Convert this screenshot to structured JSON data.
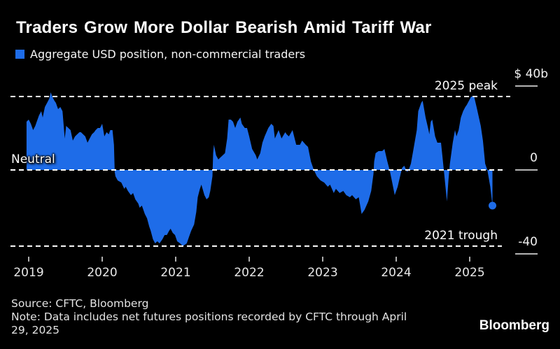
{
  "colors": {
    "background": "#000000",
    "accent_blue": "#1e6ce8",
    "dashed_line": "#ffffff",
    "axis_tick": "#d9d9d9",
    "text_primary": "#ffffff",
    "text_secondary": "#e3e3e3"
  },
  "chart_data": {
    "type": "area",
    "title": "Traders Grow More Dollar Bearish Amid Tariff War",
    "legend_position": "top-left",
    "grid": "off",
    "baseline": 0,
    "x_range": [
      2018.97,
      2025.37
    ],
    "ylim": [
      -45,
      48
    ],
    "x_ticks": [
      "2019",
      "2020",
      "2021",
      "2022",
      "2023",
      "2024",
      "2025"
    ],
    "y_ticks": [
      {
        "label": "$ 40b",
        "value": 40
      },
      {
        "label": "0",
        "value": 0
      },
      {
        "label": "-40",
        "value": -40
      }
    ],
    "annotations": [
      {
        "label": "2025 peak",
        "value": 35,
        "side": "right",
        "style": "dashed"
      },
      {
        "label": "Neutral",
        "value": 0,
        "side": "left",
        "style": "dashed"
      },
      {
        "label": "2021 trough",
        "value": -36.3,
        "side": "right",
        "style": "dashed"
      }
    ],
    "series": [
      {
        "name": "Aggregate USD position, non-commercial traders",
        "units": "USD billions",
        "points": [
          [
            2018.97,
            23
          ],
          [
            2019.0,
            24
          ],
          [
            2019.03,
            22
          ],
          [
            2019.06,
            19
          ],
          [
            2019.09,
            21
          ],
          [
            2019.11,
            23
          ],
          [
            2019.14,
            26
          ],
          [
            2019.17,
            28
          ],
          [
            2019.19,
            25
          ],
          [
            2019.22,
            30
          ],
          [
            2019.25,
            32
          ],
          [
            2019.28,
            34
          ],
          [
            2019.3,
            37
          ],
          [
            2019.32,
            35
          ],
          [
            2019.35,
            33
          ],
          [
            2019.37,
            32
          ],
          [
            2019.4,
            29
          ],
          [
            2019.43,
            30
          ],
          [
            2019.46,
            28
          ],
          [
            2019.49,
            15
          ],
          [
            2019.51,
            21
          ],
          [
            2019.54,
            20
          ],
          [
            2019.57,
            19
          ],
          [
            2019.6,
            14
          ],
          [
            2019.63,
            16
          ],
          [
            2019.66,
            17
          ],
          [
            2019.69,
            18
          ],
          [
            2019.71,
            18
          ],
          [
            2019.74,
            17
          ],
          [
            2019.77,
            16
          ],
          [
            2019.8,
            13
          ],
          [
            2019.83,
            15
          ],
          [
            2019.86,
            17
          ],
          [
            2019.89,
            18
          ],
          [
            2019.91,
            19
          ],
          [
            2019.94,
            20
          ],
          [
            2019.97,
            20
          ],
          [
            2020.0,
            22
          ],
          [
            2020.03,
            16
          ],
          [
            2020.06,
            18
          ],
          [
            2020.09,
            17
          ],
          [
            2020.11,
            19
          ],
          [
            2020.14,
            19
          ],
          [
            2020.16,
            12
          ],
          [
            2020.17,
            -1
          ],
          [
            2020.18,
            -3
          ],
          [
            2020.21,
            -5
          ],
          [
            2020.26,
            -6
          ],
          [
            2020.3,
            -9
          ],
          [
            2020.32,
            -8
          ],
          [
            2020.35,
            -10
          ],
          [
            2020.39,
            -12
          ],
          [
            2020.42,
            -11
          ],
          [
            2020.45,
            -14
          ],
          [
            2020.49,
            -16
          ],
          [
            2020.51,
            -18
          ],
          [
            2020.54,
            -17
          ],
          [
            2020.58,
            -21
          ],
          [
            2020.61,
            -23
          ],
          [
            2020.64,
            -27
          ],
          [
            2020.66,
            -29
          ],
          [
            2020.69,
            -33
          ],
          [
            2020.72,
            -35
          ],
          [
            2020.75,
            -34
          ],
          [
            2020.78,
            -35
          ],
          [
            2020.82,
            -33
          ],
          [
            2020.85,
            -31
          ],
          [
            2020.88,
            -31
          ],
          [
            2020.91,
            -29
          ],
          [
            2020.93,
            -28
          ],
          [
            2020.96,
            -30
          ],
          [
            2020.99,
            -31
          ],
          [
            2021.02,
            -34
          ],
          [
            2021.06,
            -35
          ],
          [
            2021.09,
            -36
          ],
          [
            2021.11,
            -36
          ],
          [
            2021.15,
            -35
          ],
          [
            2021.18,
            -32
          ],
          [
            2021.21,
            -29
          ],
          [
            2021.25,
            -26
          ],
          [
            2021.28,
            -20
          ],
          [
            2021.3,
            -13
          ],
          [
            2021.33,
            -9
          ],
          [
            2021.35,
            -7
          ],
          [
            2021.39,
            -12
          ],
          [
            2021.42,
            -14
          ],
          [
            2021.45,
            -13
          ],
          [
            2021.47,
            -10
          ],
          [
            2021.5,
            -3
          ],
          [
            2021.51,
            8
          ],
          [
            2021.52,
            12
          ],
          [
            2021.55,
            7
          ],
          [
            2021.58,
            5
          ],
          [
            2021.61,
            6
          ],
          [
            2021.64,
            7
          ],
          [
            2021.67,
            8
          ],
          [
            2021.7,
            15
          ],
          [
            2021.72,
            24
          ],
          [
            2021.75,
            24
          ],
          [
            2021.78,
            23
          ],
          [
            2021.81,
            20
          ],
          [
            2021.84,
            23
          ],
          [
            2021.88,
            25
          ],
          [
            2021.9,
            22
          ],
          [
            2021.94,
            20
          ],
          [
            2021.97,
            20
          ],
          [
            2022.0,
            16
          ],
          [
            2022.04,
            10
          ],
          [
            2022.09,
            7
          ],
          [
            2022.11,
            5
          ],
          [
            2022.15,
            8
          ],
          [
            2022.18,
            13
          ],
          [
            2022.21,
            16
          ],
          [
            2022.26,
            20
          ],
          [
            2022.3,
            22
          ],
          [
            2022.33,
            21
          ],
          [
            2022.35,
            15
          ],
          [
            2022.4,
            19
          ],
          [
            2022.44,
            15
          ],
          [
            2022.49,
            18
          ],
          [
            2022.51,
            17
          ],
          [
            2022.54,
            16
          ],
          [
            2022.59,
            19
          ],
          [
            2022.64,
            12
          ],
          [
            2022.69,
            12
          ],
          [
            2022.72,
            14
          ],
          [
            2022.77,
            12
          ],
          [
            2022.8,
            11
          ],
          [
            2022.84,
            4
          ],
          [
            2022.88,
            0
          ],
          [
            2022.92,
            -3
          ],
          [
            2022.97,
            -5
          ],
          [
            2023.02,
            -6
          ],
          [
            2023.07,
            -8
          ],
          [
            2023.1,
            -7
          ],
          [
            2023.15,
            -11
          ],
          [
            2023.18,
            -9
          ],
          [
            2023.23,
            -11
          ],
          [
            2023.28,
            -10
          ],
          [
            2023.32,
            -12
          ],
          [
            2023.37,
            -13
          ],
          [
            2023.4,
            -12
          ],
          [
            2023.45,
            -14
          ],
          [
            2023.49,
            -13
          ],
          [
            2023.53,
            -21
          ],
          [
            2023.57,
            -19
          ],
          [
            2023.62,
            -15
          ],
          [
            2023.66,
            -10
          ],
          [
            2023.69,
            -2
          ],
          [
            2023.7,
            4
          ],
          [
            2023.72,
            8
          ],
          [
            2023.76,
            9
          ],
          [
            2023.81,
            9
          ],
          [
            2023.84,
            10
          ],
          [
            2023.88,
            4
          ],
          [
            2023.91,
            0
          ],
          [
            2023.94,
            -5
          ],
          [
            2023.98,
            -12
          ],
          [
            2024.02,
            -8
          ],
          [
            2024.06,
            -2
          ],
          [
            2024.08,
            1
          ],
          [
            2024.11,
            2
          ],
          [
            2024.15,
            -1
          ],
          [
            2024.18,
            1
          ],
          [
            2024.2,
            3
          ],
          [
            2024.23,
            9
          ],
          [
            2024.28,
            19
          ],
          [
            2024.3,
            28
          ],
          [
            2024.34,
            32
          ],
          [
            2024.36,
            33
          ],
          [
            2024.4,
            25
          ],
          [
            2024.44,
            19
          ],
          [
            2024.45,
            17
          ],
          [
            2024.47,
            23
          ],
          [
            2024.49,
            24
          ],
          [
            2024.53,
            16
          ],
          [
            2024.56,
            13
          ],
          [
            2024.61,
            13
          ],
          [
            2024.63,
            6
          ],
          [
            2024.67,
            -8
          ],
          [
            2024.69,
            -15
          ],
          [
            2024.71,
            -5
          ],
          [
            2024.73,
            3
          ],
          [
            2024.77,
            13
          ],
          [
            2024.8,
            19
          ],
          [
            2024.82,
            16
          ],
          [
            2024.85,
            19
          ],
          [
            2024.88,
            25
          ],
          [
            2024.91,
            28
          ],
          [
            2024.94,
            30
          ],
          [
            2024.96,
            31
          ],
          [
            2024.99,
            33
          ],
          [
            2025.02,
            35
          ],
          [
            2025.06,
            35
          ],
          [
            2025.1,
            29
          ],
          [
            2025.15,
            21
          ],
          [
            2025.18,
            14
          ],
          [
            2025.21,
            3
          ],
          [
            2025.24,
            0
          ],
          [
            2025.28,
            -8
          ],
          [
            2025.31,
            -17
          ]
        ],
        "last_point_marker": true
      }
    ]
  },
  "footer": {
    "source": "Source: CFTC, Bloomberg",
    "note_line_1": "Note: Data includes net futures positions recorded by CFTC through April",
    "note_line_2": "29, 2025",
    "logo": "Bloomberg"
  }
}
